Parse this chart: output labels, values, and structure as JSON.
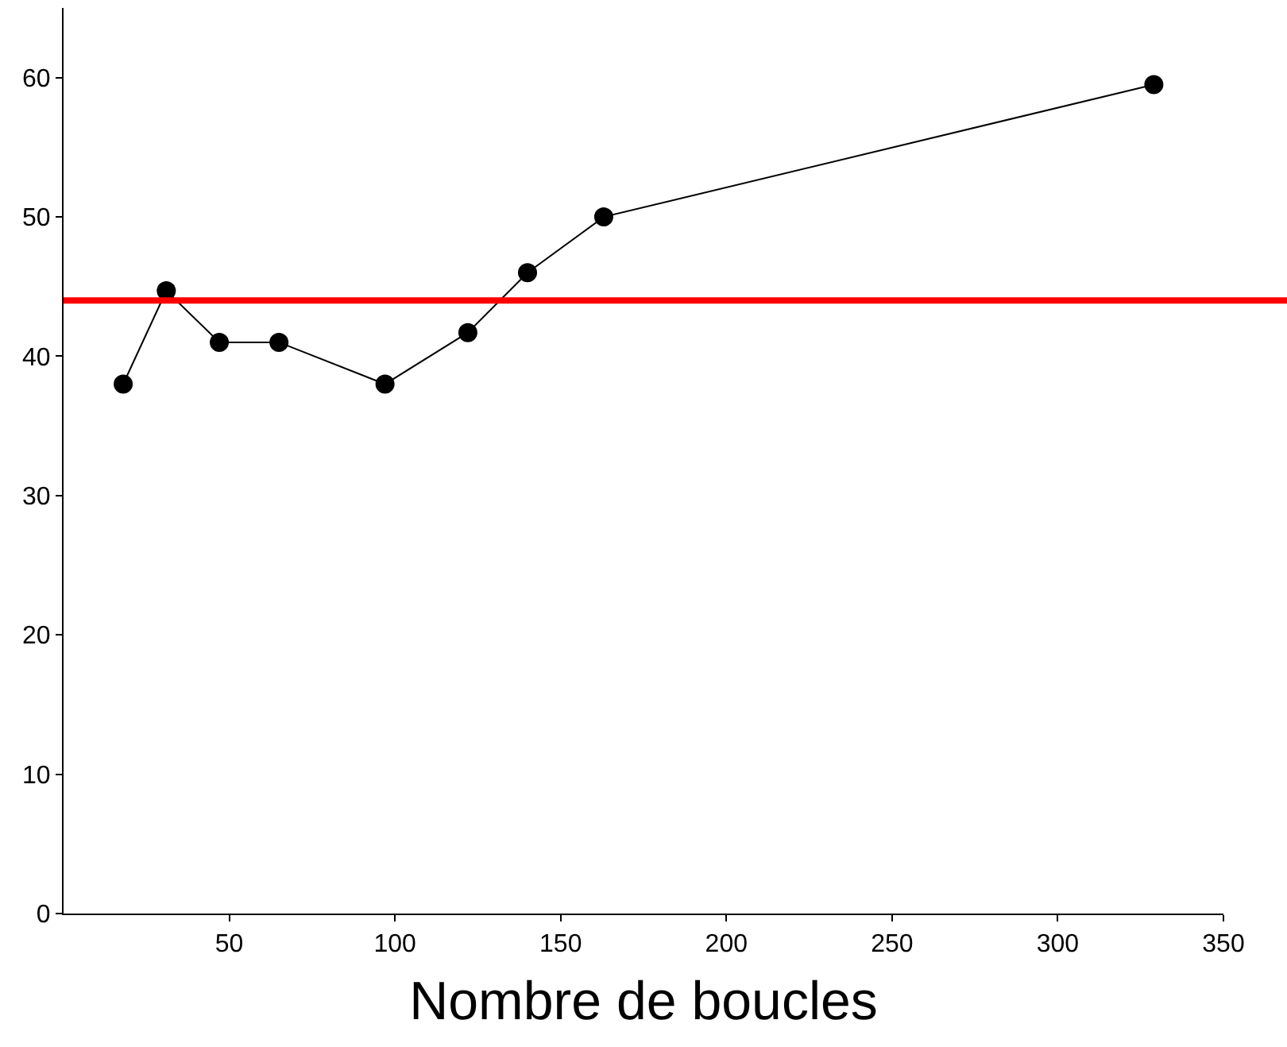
{
  "chart_data": {
    "type": "line",
    "xlabel": "Nombre de boucles",
    "x": [
      18,
      31,
      47,
      65,
      97,
      122,
      140,
      163,
      329
    ],
    "series": [
      {
        "color": "#000000",
        "values": [
          38,
          44.7,
          41,
          41,
          38,
          41.7,
          46,
          50,
          59.5
        ]
      }
    ],
    "xlim": [
      0,
      350
    ],
    "xticks": [
      50,
      100,
      150,
      200,
      250,
      300,
      350
    ],
    "ylim": [
      0,
      65
    ],
    "yticks": [
      0,
      10,
      20,
      30,
      40,
      50,
      60
    ],
    "ref_lines": [
      {
        "axis": "y",
        "value": 44,
        "color": "#ff0000"
      }
    ],
    "marker": "circle",
    "line_style": "solid"
  }
}
